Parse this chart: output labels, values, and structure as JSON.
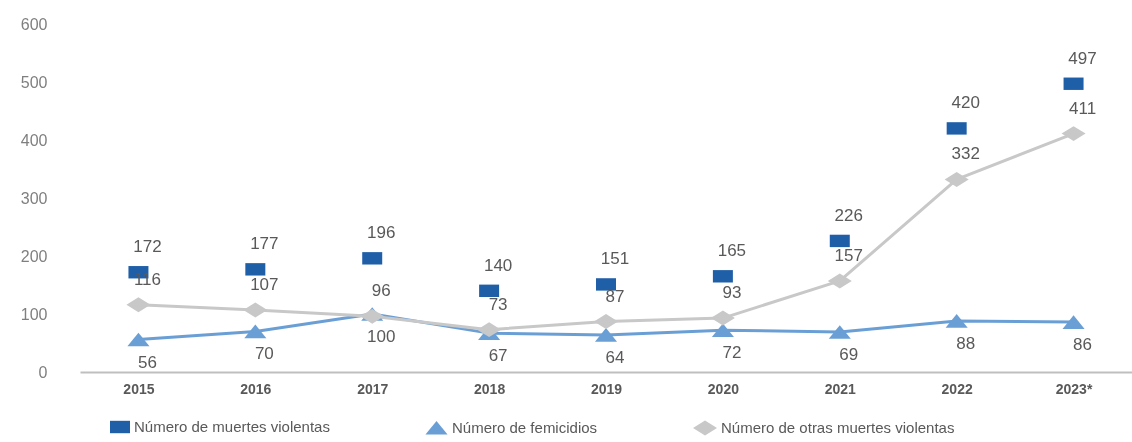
{
  "chart_data": {
    "type": "line",
    "categories": [
      "2015",
      "2016",
      "2017",
      "2018",
      "2019",
      "2020",
      "2021",
      "2022",
      "2023*"
    ],
    "series": [
      {
        "name": "Número de muertes violentas",
        "type": "scatter",
        "marker": "square",
        "color": "#1f5fa8",
        "values": [
          172,
          177,
          196,
          140,
          151,
          165,
          226,
          420,
          497
        ]
      },
      {
        "name": "Número de femicidios",
        "type": "line",
        "marker": "triangle",
        "color": "#6a9fd6",
        "values": [
          56,
          70,
          100,
          67,
          64,
          72,
          69,
          88,
          86
        ]
      },
      {
        "name": "Número de otras muertes violentas",
        "marker": "diamond",
        "color": "#c8c8c8",
        "values": [
          116,
          107,
          96,
          73,
          87,
          93,
          157,
          332,
          411
        ]
      }
    ],
    "ylim": [
      0,
      600
    ],
    "yticks": [
      0,
      100,
      200,
      300,
      400,
      500,
      600
    ],
    "legend": "bottom",
    "data_labels": true
  }
}
